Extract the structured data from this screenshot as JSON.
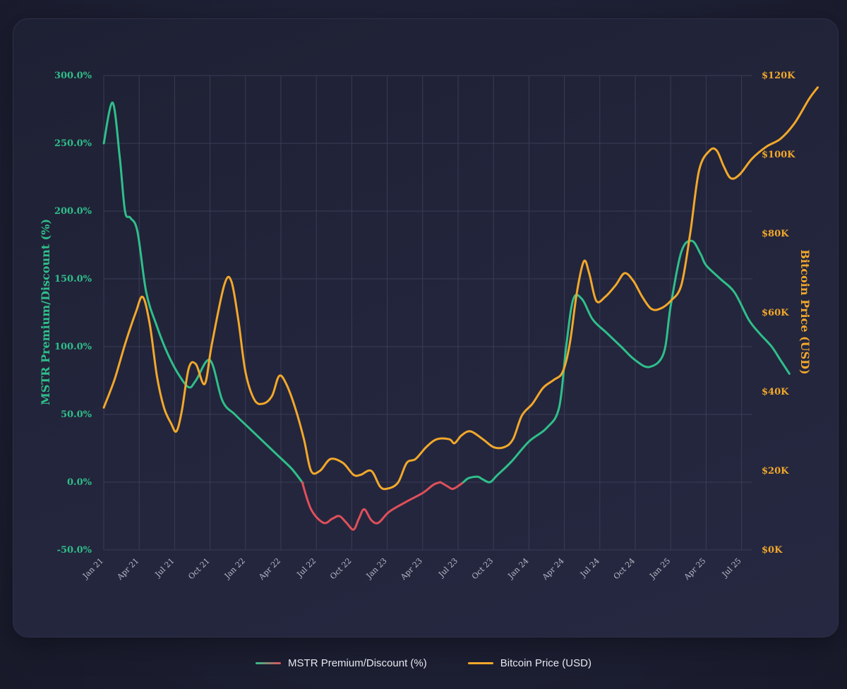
{
  "chart_data": {
    "type": "line",
    "x": [
      "Jan 21",
      "Apr 21",
      "Jul 21",
      "Oct 21",
      "Jan 22",
      "Apr 22",
      "Jul 22",
      "Oct 22",
      "Jan 23",
      "Apr 23",
      "Jul 23",
      "Oct 23",
      "Jan 24",
      "Apr 24",
      "Jul 24",
      "Oct 24",
      "Jan 25",
      "Apr 25",
      "Jul 25"
    ],
    "x_tick_labels": [
      "Jan 21",
      "Apr 21",
      "Jul 21",
      "Oct 21",
      "Jan 22",
      "Apr 22",
      "Jul 22",
      "Oct 22",
      "Jan 23",
      "Apr 23",
      "Jul 23",
      "Oct 23",
      "Jan 24",
      "Apr 24",
      "Jul 24",
      "Oct 24",
      "Jan 25",
      "Apr 25",
      "Jul 25"
    ],
    "y_left": {
      "label": "MSTR Premium/Discount (%)",
      "ylim": [
        -50,
        300
      ],
      "ticks": [
        300,
        250,
        200,
        150,
        100,
        50,
        0,
        -50
      ],
      "tick_labels": [
        "300.0%",
        "250.0%",
        "200.0%",
        "150.0%",
        "100.0%",
        "50.0%",
        "0.0%",
        "-50.0%"
      ]
    },
    "y_right": {
      "label": "Bitcoin Price (USD)",
      "ylim": [
        0,
        120000
      ],
      "ticks": [
        120000,
        100000,
        80000,
        60000,
        40000,
        20000,
        0
      ],
      "tick_labels": [
        "$120K",
        "$100K",
        "$80K",
        "$60K",
        "$40K",
        "$20K",
        "$0K"
      ]
    },
    "series": [
      {
        "name": "MSTR Premium/Discount (%)",
        "axis": "left",
        "color_positive": "#2fbf8a",
        "color_negative": "#e0505a",
        "points": [
          [
            0.0,
            250
          ],
          [
            0.25,
            280
          ],
          [
            0.45,
            240
          ],
          [
            0.6,
            200
          ],
          [
            0.75,
            195
          ],
          [
            0.95,
            185
          ],
          [
            1.2,
            140
          ],
          [
            1.5,
            115
          ],
          [
            1.8,
            95
          ],
          [
            2.1,
            80
          ],
          [
            2.4,
            70
          ],
          [
            2.6,
            75
          ],
          [
            3.0,
            90
          ],
          [
            3.35,
            60
          ],
          [
            3.7,
            50
          ],
          [
            4.1,
            40
          ],
          [
            4.5,
            30
          ],
          [
            4.9,
            20
          ],
          [
            5.3,
            10
          ],
          [
            5.6,
            0
          ],
          [
            5.85,
            -20
          ],
          [
            6.2,
            -30
          ],
          [
            6.45,
            -27
          ],
          [
            6.65,
            -25
          ],
          [
            6.85,
            -30
          ],
          [
            7.05,
            -35
          ],
          [
            7.2,
            -27
          ],
          [
            7.35,
            -20
          ],
          [
            7.55,
            -28
          ],
          [
            7.75,
            -30
          ],
          [
            8.05,
            -22
          ],
          [
            8.5,
            -15
          ],
          [
            9.0,
            -8
          ],
          [
            9.3,
            -2
          ],
          [
            9.5,
            0
          ],
          [
            9.7,
            -3
          ],
          [
            9.85,
            -5
          ],
          [
            10.05,
            -2
          ],
          [
            10.3,
            3
          ],
          [
            10.55,
            4
          ],
          [
            10.7,
            2
          ],
          [
            10.9,
            0
          ],
          [
            11.1,
            5
          ],
          [
            11.5,
            15
          ],
          [
            12.0,
            30
          ],
          [
            12.5,
            40
          ],
          [
            12.85,
            55
          ],
          [
            13.05,
            100
          ],
          [
            13.25,
            135
          ],
          [
            13.5,
            135
          ],
          [
            13.8,
            120
          ],
          [
            14.2,
            110
          ],
          [
            14.6,
            100
          ],
          [
            15.0,
            90
          ],
          [
            15.4,
            85
          ],
          [
            15.8,
            95
          ],
          [
            16.0,
            130
          ],
          [
            16.3,
            170
          ],
          [
            16.6,
            178
          ],
          [
            16.85,
            168
          ],
          [
            17.0,
            160
          ],
          [
            17.4,
            150
          ],
          [
            17.8,
            140
          ],
          [
            18.2,
            120
          ],
          [
            18.5,
            110
          ],
          [
            18.85,
            100
          ],
          [
            19.1,
            90
          ],
          [
            19.35,
            80
          ]
        ]
      },
      {
        "name": "Bitcoin Price (USD)",
        "axis": "right",
        "color": "#f2a82a",
        "points": [
          [
            0.0,
            36000
          ],
          [
            0.3,
            43000
          ],
          [
            0.6,
            52000
          ],
          [
            0.9,
            60000
          ],
          [
            1.1,
            64000
          ],
          [
            1.3,
            57000
          ],
          [
            1.5,
            44000
          ],
          [
            1.7,
            36000
          ],
          [
            1.9,
            32000
          ],
          [
            2.05,
            30000
          ],
          [
            2.2,
            35000
          ],
          [
            2.4,
            46000
          ],
          [
            2.6,
            47000
          ],
          [
            2.85,
            42000
          ],
          [
            3.05,
            52000
          ],
          [
            3.4,
            67000
          ],
          [
            3.6,
            68000
          ],
          [
            3.8,
            58000
          ],
          [
            4.0,
            45000
          ],
          [
            4.25,
            38000
          ],
          [
            4.5,
            37000
          ],
          [
            4.75,
            39000
          ],
          [
            4.95,
            44000
          ],
          [
            5.15,
            42000
          ],
          [
            5.4,
            36000
          ],
          [
            5.65,
            28000
          ],
          [
            5.85,
            20000
          ],
          [
            6.1,
            20000
          ],
          [
            6.4,
            23000
          ],
          [
            6.75,
            22000
          ],
          [
            7.05,
            19000
          ],
          [
            7.25,
            19000
          ],
          [
            7.55,
            20000
          ],
          [
            7.8,
            16000
          ],
          [
            8.0,
            15500
          ],
          [
            8.3,
            17000
          ],
          [
            8.55,
            22000
          ],
          [
            8.8,
            23000
          ],
          [
            9.1,
            26000
          ],
          [
            9.4,
            28000
          ],
          [
            9.75,
            28000
          ],
          [
            9.9,
            27000
          ],
          [
            10.1,
            29000
          ],
          [
            10.35,
            30000
          ],
          [
            10.7,
            28000
          ],
          [
            11.0,
            26000
          ],
          [
            11.3,
            26000
          ],
          [
            11.55,
            28000
          ],
          [
            11.8,
            34000
          ],
          [
            12.1,
            37000
          ],
          [
            12.4,
            41000
          ],
          [
            12.7,
            43000
          ],
          [
            12.95,
            45000
          ],
          [
            13.15,
            52000
          ],
          [
            13.35,
            65000
          ],
          [
            13.55,
            73000
          ],
          [
            13.7,
            70000
          ],
          [
            13.9,
            63000
          ],
          [
            14.15,
            64000
          ],
          [
            14.45,
            67000
          ],
          [
            14.7,
            70000
          ],
          [
            14.95,
            68000
          ],
          [
            15.2,
            64000
          ],
          [
            15.45,
            61000
          ],
          [
            15.7,
            61000
          ],
          [
            16.0,
            63000
          ],
          [
            16.3,
            67000
          ],
          [
            16.55,
            80000
          ],
          [
            16.8,
            96000
          ],
          [
            17.1,
            101000
          ],
          [
            17.3,
            101000
          ],
          [
            17.5,
            97000
          ],
          [
            17.7,
            94000
          ],
          [
            17.95,
            95000
          ],
          [
            18.3,
            99000
          ],
          [
            18.7,
            102000
          ],
          [
            19.1,
            104000
          ],
          [
            19.5,
            108000
          ],
          [
            19.9,
            114000
          ],
          [
            20.15,
            117000
          ]
        ]
      }
    ],
    "legend": {
      "placement": "bottom-center",
      "items": [
        {
          "label": "MSTR Premium/Discount (%)",
          "color_from": "#2fbf8a",
          "color_to": "#e0505a"
        },
        {
          "label": "Bitcoin Price (USD)",
          "color_from": "#f2a82a",
          "color_to": "#f2a82a"
        }
      ]
    },
    "grid": true
  }
}
